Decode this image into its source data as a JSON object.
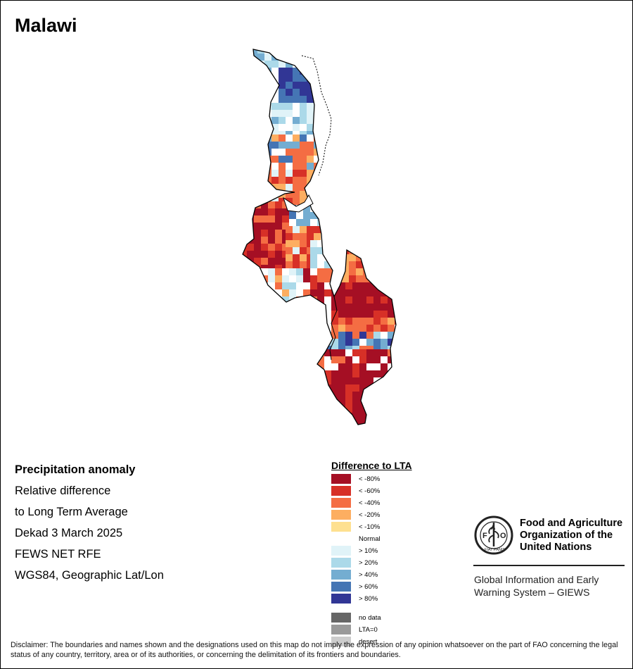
{
  "title": "Malawi",
  "info": {
    "heading": "Precipitation anomaly",
    "line1": "Relative difference",
    "line2": "to Long Term Average",
    "line3": "Dekad 3 March 2025",
    "line4": "FEWS NET RFE",
    "line5": "WGS84, Geographic Lat/Lon"
  },
  "legend": {
    "title": "Difference to LTA",
    "classes": [
      {
        "label": "< -80%",
        "color": "#a50f24"
      },
      {
        "label": "< -60%",
        "color": "#d73027"
      },
      {
        "label": "< -40%",
        "color": "#f46d43"
      },
      {
        "label": "< -20%",
        "color": "#fdae61"
      },
      {
        "label": "< -10%",
        "color": "#fee090"
      },
      {
        "label": "Normal",
        "color": "#ffffff"
      },
      {
        "label": "> 10%",
        "color": "#e0f3f8"
      },
      {
        "label": "> 20%",
        "color": "#abd9e9"
      },
      {
        "label": "> 40%",
        "color": "#74add1"
      },
      {
        "label": "> 60%",
        "color": "#4575b4"
      },
      {
        "label": "> 80%",
        "color": "#313695"
      }
    ],
    "extra": [
      {
        "label": "no data",
        "color": "#666666"
      },
      {
        "label": "LTA=0",
        "color": "#999999"
      },
      {
        "label": "desert",
        "color": "#cccccc"
      }
    ]
  },
  "org": {
    "logo_text": "FAO",
    "logo_ring_text": "FIAT PANIS",
    "name_line1": "Food and Agriculture",
    "name_line2": "Organization of the",
    "name_line3": "United Nations",
    "system_line1": "Global Information and Early",
    "system_line2": "Warning System – GIEWS"
  },
  "disclaimer": "Disclaimer: The boundaries and names shown and the designations used on this map do not imply the expression of any opinion whatsoever on the part of FAO concerning the legal status of any country, territory, area or of its authorities, or concerning the delimitation of its frontiers and boundaries."
}
